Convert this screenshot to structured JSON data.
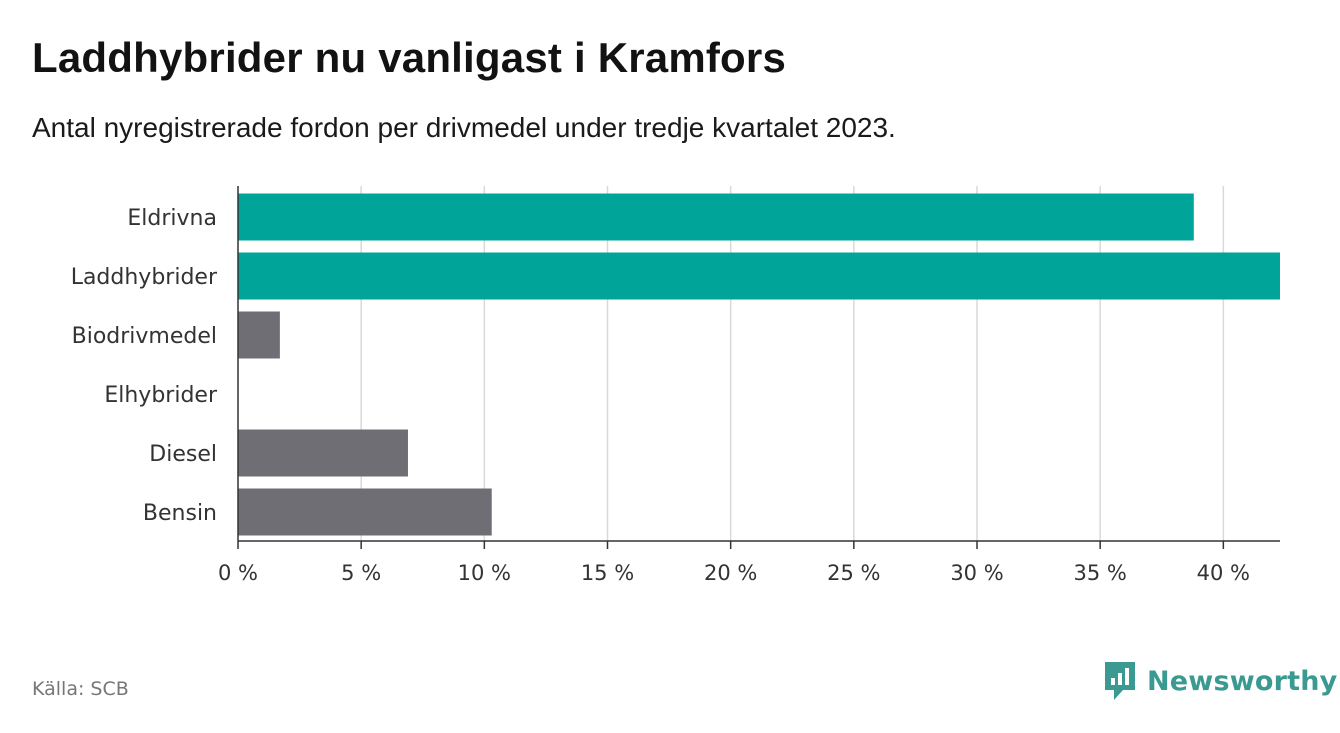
{
  "header": {
    "title": "Laddhybrider nu vanligast i Kramfors",
    "subtitle": "Antal nyregistrerade fordon per drivmedel under tredje kvartalet 2023."
  },
  "footer": {
    "source": "Källa: SCB",
    "brand": "Newsworthy"
  },
  "colors": {
    "highlight": "#00a499",
    "neutral": "#6f6e75",
    "grid": "#d9d9d9",
    "axis": "#333333",
    "brand": "#3a9a92"
  },
  "chart_data": {
    "type": "bar",
    "orientation": "horizontal",
    "categories": [
      "Eldrivna",
      "Laddhybrider",
      "Biodrivmedel",
      "Elhybrider",
      "Diesel",
      "Bensin"
    ],
    "values": [
      38.8,
      42.3,
      1.7,
      0,
      6.9,
      10.3
    ],
    "highlight": [
      true,
      true,
      false,
      false,
      false,
      false
    ],
    "xlim": [
      0,
      42.3
    ],
    "xticks": [
      0,
      5,
      10,
      15,
      20,
      25,
      30,
      35,
      40
    ],
    "tick_labels": [
      "0 %",
      "5 %",
      "10 %",
      "15 %",
      "20 %",
      "25 %",
      "30 %",
      "35 %",
      "40 %"
    ],
    "title": "Laddhybrider nu vanligast i Kramfors",
    "xlabel": "",
    "ylabel": "",
    "grid": true
  }
}
